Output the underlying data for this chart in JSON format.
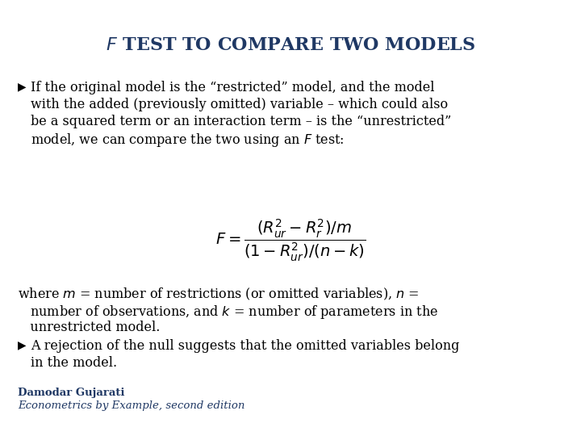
{
  "background_color": "#ffffff",
  "title": "$\\mathit{F}$ TEST TO COMPARE TWO MODELS",
  "title_color": "#1F3864",
  "title_fontsize": 16,
  "body_color": "#000000",
  "body_fontsize": 11.5,
  "bullet1_line1": "▶  If the original model is the “restricted” model, and the model",
  "bullet1_line2": "    with the added (previously omitted) variable – which could also",
  "bullet1_line3": "    be a squared term or an interaction term – is the “unrestricted”",
  "bullet1_line4": "    model, we can compare the two using an $\\mathit{F}$ test:",
  "formula": "$F = \\dfrac{(R_{ur}^{2} - R_{r}^{2})/m}{(1-R_{ur}^{2})/(n-k)}$",
  "formula_fontsize": 14,
  "where_line1": "where $\\mathit{m}$ = number of restrictions (or omitted variables), $\\mathit{n}$ =",
  "where_line2": "   number of observations, and $\\mathit{k}$ = number of parameters in the",
  "where_line3": "   unrestricted model.",
  "bullet2_line1": "▶  A rejection of the null suggests that the omitted variables belong",
  "bullet2_line2": "    in the model.",
  "footer1": "Damodar Gujarati",
  "footer2": "Econometrics by Example, second edition",
  "footer_color": "#1F3864",
  "footer_fontsize": 9.5
}
